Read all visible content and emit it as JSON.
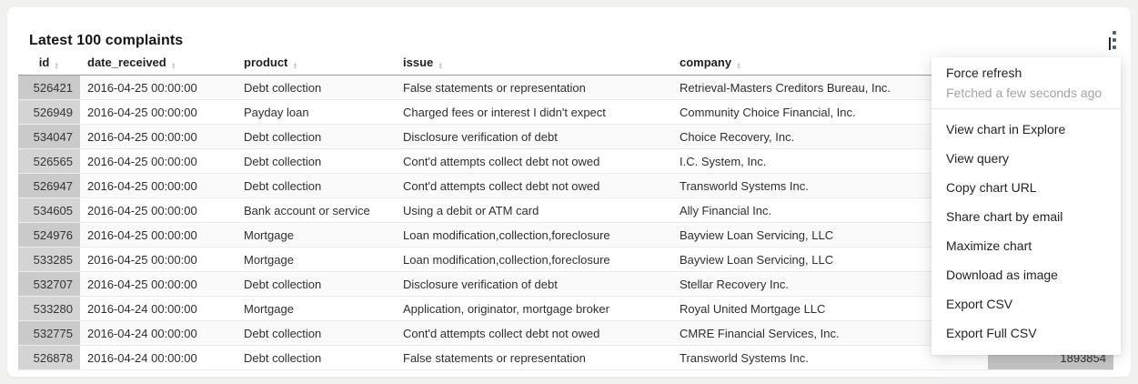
{
  "card": {
    "title": "Latest 100 complaints"
  },
  "table": {
    "columns": [
      {
        "label": "id"
      },
      {
        "label": "date_received"
      },
      {
        "label": "product"
      },
      {
        "label": "issue"
      },
      {
        "label": "company"
      }
    ],
    "rows": [
      {
        "id": "526421",
        "date_received": "2016-04-25 00:00:00",
        "product": "Debt collection",
        "issue": "False statements or representation",
        "company": "Retrieval-Masters Creditors Bureau, Inc."
      },
      {
        "id": "526949",
        "date_received": "2016-04-25 00:00:00",
        "product": "Payday loan",
        "issue": "Charged fees or interest I didn't expect",
        "company": "Community Choice Financial, Inc."
      },
      {
        "id": "534047",
        "date_received": "2016-04-25 00:00:00",
        "product": "Debt collection",
        "issue": "Disclosure verification of debt",
        "company": "Choice Recovery, Inc."
      },
      {
        "id": "526565",
        "date_received": "2016-04-25 00:00:00",
        "product": "Debt collection",
        "issue": "Cont'd attempts collect debt not owed",
        "company": "I.C. System, Inc."
      },
      {
        "id": "526947",
        "date_received": "2016-04-25 00:00:00",
        "product": "Debt collection",
        "issue": "Cont'd attempts collect debt not owed",
        "company": "Transworld Systems Inc."
      },
      {
        "id": "534605",
        "date_received": "2016-04-25 00:00:00",
        "product": "Bank account or service",
        "issue": "Using a debit or ATM card",
        "company": "Ally Financial Inc."
      },
      {
        "id": "524976",
        "date_received": "2016-04-25 00:00:00",
        "product": "Mortgage",
        "issue": "Loan modification,collection,foreclosure",
        "company": "Bayview Loan Servicing, LLC"
      },
      {
        "id": "533285",
        "date_received": "2016-04-25 00:00:00",
        "product": "Mortgage",
        "issue": "Loan modification,collection,foreclosure",
        "company": "Bayview Loan Servicing, LLC"
      },
      {
        "id": "532707",
        "date_received": "2016-04-25 00:00:00",
        "product": "Debt collection",
        "issue": "Disclosure verification of debt",
        "company": "Stellar Recovery Inc."
      },
      {
        "id": "533280",
        "date_received": "2016-04-24 00:00:00",
        "product": "Mortgage",
        "issue": "Application, originator, mortgage broker",
        "company": "Royal United Mortgage LLC"
      },
      {
        "id": "532775",
        "date_received": "2016-04-24 00:00:00",
        "product": "Debt collection",
        "issue": "Cont'd attempts collect debt not owed",
        "company": "CMRE Financial Services, Inc."
      },
      {
        "id": "526878",
        "date_received": "2016-04-24 00:00:00",
        "product": "Debt collection",
        "issue": "False statements or representation",
        "company": "Transworld Systems Inc."
      }
    ],
    "overflow_value": "1893854"
  },
  "menu": {
    "force_refresh_label": "Force refresh",
    "fetched_status": "Fetched a few seconds ago",
    "items": [
      "View chart in Explore",
      "View query",
      "Copy chart URL",
      "Share chart by email",
      "Maximize chart",
      "Download as image",
      "Export CSV",
      "Export Full CSV"
    ]
  },
  "colors": {
    "page_background": "#f1f1f0",
    "card_background": "#ffffff",
    "id_cell_background": "#d0d0d0",
    "header_border": "#9a9a9a",
    "row_border": "#ececec",
    "muted_text": "#a3a3a3"
  }
}
